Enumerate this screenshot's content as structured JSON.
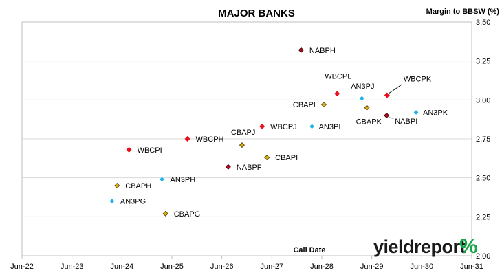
{
  "chart_data": {
    "type": "scatter",
    "title": "MAJOR BANKS",
    "ylabel": "Margin to BBSW (%)",
    "xlabel": "Call Date",
    "x_ticks": [
      "Jun-22",
      "Jun-23",
      "Jun-24",
      "Jun-25",
      "Jun-26",
      "Jun-27",
      "Jun-28",
      "Jun-29",
      "Jun-30",
      "Jun-31"
    ],
    "y_ticks": [
      "2.00",
      "2.25",
      "2.50",
      "2.75",
      "3.00",
      "3.25",
      "3.50"
    ],
    "xlim": [
      "2022-06",
      "2031-06"
    ],
    "ylim": [
      2.0,
      3.5
    ],
    "y_axis_side": "right",
    "grid": "horizontal",
    "legend": "none",
    "colors": {
      "WBC": "#e8101c",
      "NAB": "#b00f1c",
      "CBA": "#d9b21a",
      "AN3": "#1cb4e8"
    },
    "points": [
      {
        "label": "NABPH",
        "x": "2028-01-01",
        "y": 3.32,
        "group": "NAB"
      },
      {
        "label": "WBCPL",
        "x": "2028-09-20",
        "y": 3.04,
        "group": "WBC"
      },
      {
        "label": "AN3PJ",
        "x": "2029-03-20",
        "y": 3.01,
        "group": "AN3"
      },
      {
        "label": "WBCPK",
        "x": "2029-09-20",
        "y": 3.03,
        "group": "WBC"
      },
      {
        "label": "CBAPL",
        "x": "2028-06-15",
        "y": 2.97,
        "group": "CBA"
      },
      {
        "label": "CBAPK",
        "x": "2029-04-26",
        "y": 2.95,
        "group": "CBA"
      },
      {
        "label": "NABPI",
        "x": "2029-09-17",
        "y": 2.9,
        "group": "NAB"
      },
      {
        "label": "AN3PK",
        "x": "2030-04-20",
        "y": 2.92,
        "group": "AN3"
      },
      {
        "label": "WBCPJ",
        "x": "2027-03-22",
        "y": 2.83,
        "group": "WBC"
      },
      {
        "label": "AN3PI",
        "x": "2028-03-20",
        "y": 2.83,
        "group": "AN3"
      },
      {
        "label": "WBCPH",
        "x": "2025-09-22",
        "y": 2.75,
        "group": "WBC"
      },
      {
        "label": "CBAPJ",
        "x": "2026-10-26",
        "y": 2.71,
        "group": "CBA"
      },
      {
        "label": "WBCPI",
        "x": "2024-07-22",
        "y": 2.68,
        "group": "WBC"
      },
      {
        "label": "CBAPI",
        "x": "2027-04-26",
        "y": 2.63,
        "group": "CBA"
      },
      {
        "label": "NABPF",
        "x": "2026-07-17",
        "y": 2.57,
        "group": "NAB"
      },
      {
        "label": "AN3PH",
        "x": "2025-03-20",
        "y": 2.49,
        "group": "AN3"
      },
      {
        "label": "CBAPH",
        "x": "2024-04-26",
        "y": 2.45,
        "group": "CBA"
      },
      {
        "label": "AN3PG",
        "x": "2024-03-20",
        "y": 2.35,
        "group": "AN3"
      },
      {
        "label": "CBAPG",
        "x": "2025-04-15",
        "y": 2.27,
        "group": "CBA"
      }
    ]
  },
  "logo": {
    "text": "yieldreport",
    "symbol": "%"
  }
}
